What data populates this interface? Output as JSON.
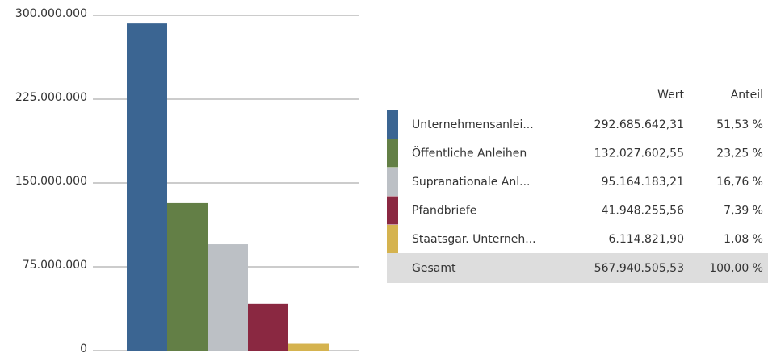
{
  "chart_data": {
    "type": "bar",
    "categories": [
      "Unternehmensanlei...",
      "Öffentliche Anleihen",
      "Supranationale Anl...",
      "Pfandbriefe",
      "Staatsgar. Unterneh..."
    ],
    "values": [
      292685642.31,
      132027602.55,
      95164183.21,
      41948255.56,
      6114821.9
    ],
    "value_labels": [
      "292.685.642,31",
      "132.027.602,55",
      "95.164.183,21",
      "41.948.255,56",
      "6.114.821,90"
    ],
    "colors": [
      "#3b6592",
      "#637f46",
      "#bcc0c5",
      "#8a2841",
      "#d5b34f"
    ],
    "ylim": [
      0,
      300000000
    ],
    "yticks": [
      {
        "value": 0,
        "label": "0"
      },
      {
        "value": 75000000,
        "label": "75.000.000"
      },
      {
        "value": 150000000,
        "label": "150.000.000"
      },
      {
        "value": 225000000,
        "label": "225.000.000"
      },
      {
        "value": 300000000,
        "label": "300.000.000"
      }
    ],
    "grid": true
  },
  "table": {
    "columns": [
      "Wert",
      "Anteil"
    ],
    "shares": [
      "51,53 %",
      "23,25 %",
      "16,76 %",
      "7,39 %",
      "1,08 %"
    ],
    "total": {
      "label": "Gesamt",
      "value": "567.940.505,53",
      "share": "100,00 %"
    }
  }
}
